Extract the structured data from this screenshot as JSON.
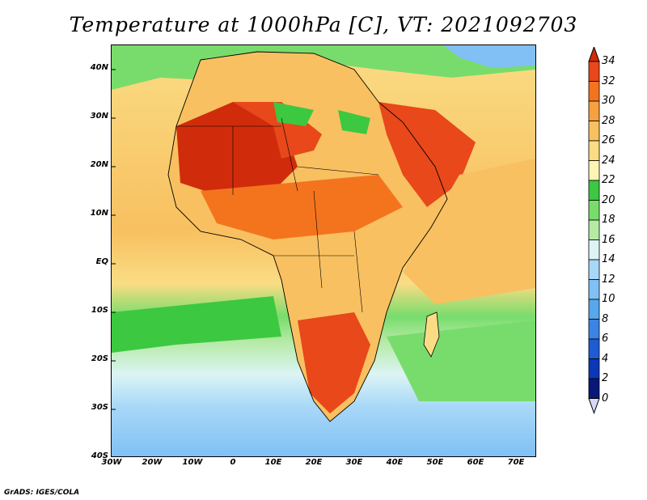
{
  "title": "Temperature at 1000hPa [C], VT: 2021092703",
  "credit": "GrADS: IGES/COLA",
  "lat_labels": [
    "40N",
    "30N",
    "20N",
    "10N",
    "EQ",
    "10S",
    "20S",
    "30S",
    "40S"
  ],
  "lon_labels": [
    "30W",
    "20W",
    "10W",
    "0",
    "10E",
    "20E",
    "30E",
    "40E",
    "50E",
    "60E",
    "70E"
  ],
  "colorbar": {
    "levels": [
      "34",
      "32",
      "30",
      "28",
      "26",
      "24",
      "22",
      "20",
      "18",
      "16",
      "14",
      "12",
      "10",
      "8",
      "6",
      "4",
      "2",
      "0"
    ],
    "colors": [
      "#d02c0c",
      "#e8481a",
      "#f4741e",
      "#f7a040",
      "#f8c060",
      "#fadc84",
      "#fcf4b4",
      "#3cc840",
      "#78dc6c",
      "#b4eaa4",
      "#dcf4f4",
      "#a8d8f8",
      "#80c0f4",
      "#58a6ec",
      "#3c84e4",
      "#1e5cd4",
      "#0c38b8",
      "#081878",
      "#d8d8f8"
    ]
  }
}
